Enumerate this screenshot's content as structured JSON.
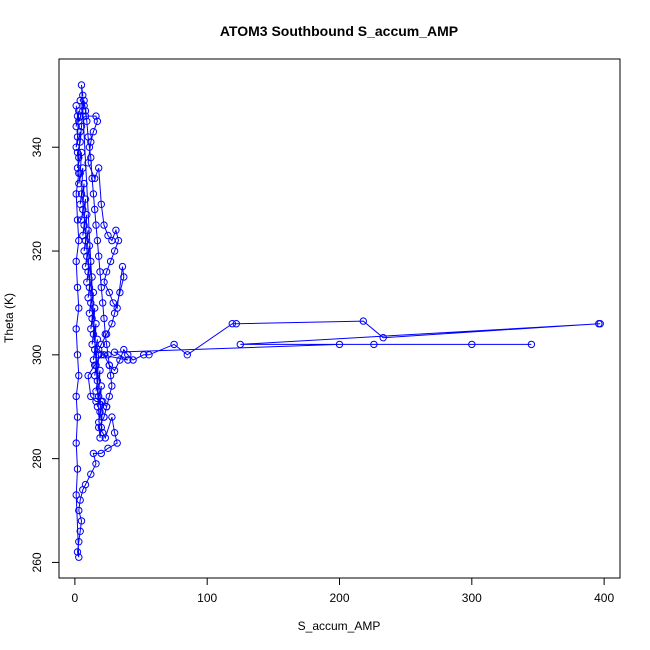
{
  "chart_data": {
    "type": "line",
    "title": "ATOM3 Southbound S_accum_AMP",
    "xlabel": "S_accum_AMP",
    "ylabel": "Theta (K)",
    "xlim": [
      -12,
      412
    ],
    "ylim": [
      257,
      357
    ],
    "xticks": [
      0,
      100,
      200,
      300,
      400
    ],
    "yticks": [
      260,
      280,
      300,
      320,
      340
    ],
    "grid": false,
    "legend": "none",
    "series_color": "#0000ff",
    "marker": "open-circle",
    "series": [
      {
        "values_note": "",
        "points": [
          [
            1,
            348
          ],
          [
            2,
            346
          ],
          [
            1,
            344
          ],
          [
            3,
            347
          ],
          [
            2,
            342
          ],
          [
            1,
            340
          ],
          [
            4,
            343
          ],
          [
            3,
            338
          ],
          [
            2,
            336
          ],
          [
            5,
            339
          ],
          [
            4,
            335
          ],
          [
            3,
            333
          ],
          [
            6,
            336
          ],
          [
            5,
            331
          ],
          [
            4,
            329
          ],
          [
            7,
            333
          ],
          [
            6,
            328
          ],
          [
            5,
            326
          ],
          [
            8,
            330
          ],
          [
            7,
            325
          ],
          [
            6,
            323
          ],
          [
            9,
            327
          ],
          [
            8,
            322
          ],
          [
            7,
            320
          ],
          [
            10,
            324
          ],
          [
            9,
            319
          ],
          [
            8,
            317
          ],
          [
            11,
            321
          ],
          [
            10,
            316
          ],
          [
            9,
            314
          ],
          [
            12,
            318
          ],
          [
            11,
            313
          ],
          [
            10,
            311
          ],
          [
            13,
            315
          ],
          [
            12,
            310
          ],
          [
            11,
            308
          ],
          [
            14,
            312
          ],
          [
            13,
            307
          ],
          [
            12,
            305
          ],
          [
            15,
            309
          ],
          [
            14,
            304
          ],
          [
            13,
            302
          ],
          [
            16,
            306
          ],
          [
            15,
            301
          ],
          [
            14,
            299
          ],
          [
            17,
            303
          ],
          [
            16,
            298
          ],
          [
            15,
            296
          ],
          [
            18,
            300
          ],
          [
            17,
            295
          ],
          [
            16,
            293
          ],
          [
            19,
            297
          ],
          [
            18,
            292
          ],
          [
            17,
            290
          ],
          [
            20,
            294
          ],
          [
            19,
            289
          ],
          [
            18,
            287
          ],
          [
            21,
            291
          ],
          [
            20,
            286
          ],
          [
            19,
            284
          ],
          [
            5,
            352
          ],
          [
            6,
            350
          ],
          [
            4,
            349
          ],
          [
            7,
            348
          ],
          [
            3,
            345
          ],
          [
            8,
            346
          ],
          [
            16,
            346
          ],
          [
            17,
            345
          ],
          [
            14,
            343
          ],
          [
            12,
            341
          ],
          [
            10,
            337
          ],
          [
            15,
            334
          ],
          [
            18,
            336
          ],
          [
            20,
            329
          ],
          [
            22,
            325
          ],
          [
            25,
            323
          ],
          [
            28,
            322
          ],
          [
            31,
            324
          ],
          [
            33,
            322
          ],
          [
            30,
            320
          ],
          [
            27,
            318
          ],
          [
            24,
            316
          ],
          [
            22,
            314
          ],
          [
            26,
            312
          ],
          [
            29,
            310
          ],
          [
            32,
            309
          ],
          [
            36,
            317
          ],
          [
            37,
            315
          ],
          [
            34,
            312
          ],
          [
            30,
            308
          ],
          [
            28,
            306
          ],
          [
            24,
            304
          ],
          [
            20,
            302
          ],
          [
            18,
            301
          ],
          [
            22,
            300
          ],
          [
            26,
            298
          ],
          [
            30,
            297
          ],
          [
            34,
            299
          ],
          [
            37,
            301
          ],
          [
            40,
            300
          ],
          [
            44,
            299
          ],
          [
            52,
            300
          ],
          [
            56,
            300
          ],
          [
            75,
            302
          ],
          [
            85,
            300
          ],
          [
            119,
            306
          ],
          [
            122,
            306
          ],
          [
            218,
            306.5
          ],
          [
            233,
            303.3
          ],
          [
            396,
            306
          ],
          [
            397,
            306
          ],
          [
            125,
            302
          ],
          [
            226,
            302
          ],
          [
            345,
            302
          ],
          [
            300,
            302
          ],
          [
            200,
            302
          ],
          [
            30,
            300.5
          ],
          [
            40,
            299
          ],
          [
            20,
            300
          ],
          [
            15,
            298
          ],
          [
            10,
            296
          ],
          [
            12,
            292
          ],
          [
            16,
            291
          ],
          [
            20,
            291
          ],
          [
            24,
            290
          ],
          [
            22,
            288
          ],
          [
            18,
            286
          ],
          [
            21,
            285
          ],
          [
            23,
            284
          ],
          [
            28,
            288
          ],
          [
            30,
            285
          ],
          [
            32,
            283
          ],
          [
            25,
            282
          ],
          [
            20,
            281
          ],
          [
            14,
            281
          ],
          [
            16,
            279
          ],
          [
            12,
            277
          ],
          [
            8,
            275
          ],
          [
            6,
            274
          ],
          [
            4,
            272
          ],
          [
            3,
            270
          ],
          [
            5,
            268
          ],
          [
            4,
            266
          ],
          [
            3,
            264
          ],
          [
            2,
            262
          ],
          [
            3,
            261
          ],
          [
            1,
            273
          ],
          [
            2,
            278
          ],
          [
            1,
            283
          ],
          [
            2,
            288
          ],
          [
            1,
            292
          ],
          [
            3,
            296
          ],
          [
            2,
            300
          ],
          [
            1,
            305
          ],
          [
            3,
            309
          ],
          [
            2,
            313
          ],
          [
            1,
            318
          ],
          [
            3,
            322
          ],
          [
            2,
            326
          ],
          [
            1,
            331
          ],
          [
            3,
            335
          ],
          [
            2,
            339
          ],
          [
            4,
            341
          ],
          [
            5,
            344
          ],
          [
            6,
            347
          ],
          [
            7,
            349
          ],
          [
            8,
            347
          ],
          [
            9,
            345
          ],
          [
            10,
            342
          ],
          [
            11,
            340
          ],
          [
            12,
            338
          ],
          [
            13,
            334
          ],
          [
            14,
            331
          ],
          [
            15,
            328
          ],
          [
            16,
            325
          ],
          [
            17,
            322
          ],
          [
            18,
            319
          ],
          [
            19,
            316
          ],
          [
            20,
            313
          ],
          [
            21,
            310
          ],
          [
            22,
            307
          ],
          [
            23,
            304
          ],
          [
            24,
            302
          ],
          [
            25,
            300
          ],
          [
            26,
            298
          ],
          [
            27,
            296
          ],
          [
            28,
            294
          ],
          [
            26,
            292
          ],
          [
            24,
            290
          ],
          [
            22,
            288
          ]
        ]
      }
    ]
  }
}
